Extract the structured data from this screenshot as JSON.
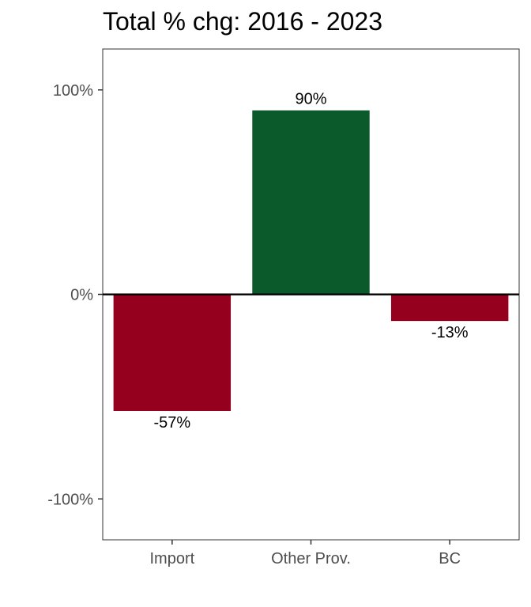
{
  "chart_data": {
    "type": "bar",
    "title": "Total % chg: 2016 - 2023",
    "xlabel": "",
    "ylabel": "",
    "categories": [
      "Import",
      "Other Prov.",
      "BC"
    ],
    "values": [
      -57,
      90,
      -13
    ],
    "data_labels": [
      "-57%",
      "90%",
      "-13%"
    ],
    "ylim": [
      -120,
      120
    ],
    "y_ticks": [
      {
        "value": 100,
        "label": "100%"
      },
      {
        "value": 0,
        "label": "0%"
      },
      {
        "value": -100,
        "label": "-100%"
      }
    ],
    "grid": false,
    "legend": "none",
    "colors": {
      "positive": "#0b5a2c",
      "negative": "#95001e",
      "zero_line": "#000000",
      "panel_border": "#333333"
    }
  }
}
